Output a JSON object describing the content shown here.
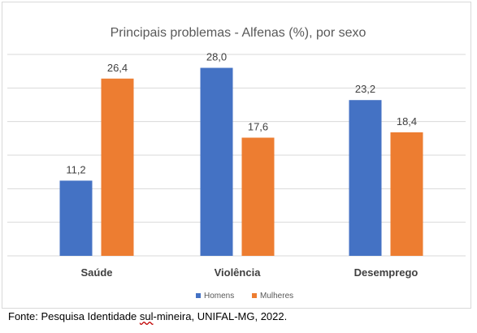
{
  "chart_data": {
    "type": "bar",
    "title": "Principais problemas - Alfenas (%), por sexo",
    "categories": [
      "Saúde",
      "Violência",
      "Desemprego"
    ],
    "series": [
      {
        "name": "Homens",
        "values": [
          11.2,
          28.0,
          23.2
        ],
        "labels": [
          "11,2",
          "28,0",
          "23,2"
        ],
        "color": "#4472C4"
      },
      {
        "name": "Mulheres",
        "values": [
          26.4,
          17.6,
          18.4
        ],
        "labels": [
          "26,4",
          "17,6",
          "18,4"
        ],
        "color": "#ED7D31"
      }
    ],
    "ylim": [
      0,
      30
    ],
    "grid": true,
    "gridline_step": 5,
    "legend_position": "bottom"
  },
  "source": {
    "prefix": "Fonte: Pesquisa Identidade ",
    "underlined": "sul",
    "suffix": "-mineira, UNIFAL-MG, 2022."
  }
}
